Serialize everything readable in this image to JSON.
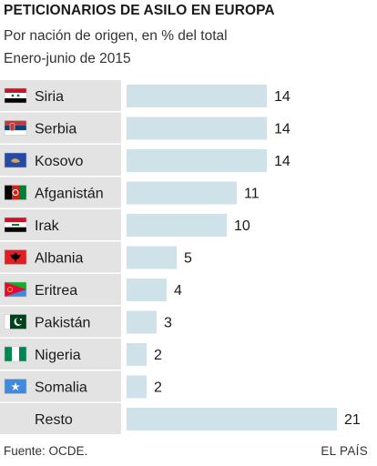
{
  "chart_data": {
    "type": "bar",
    "orientation": "horizontal",
    "title": "PETICIONARIOS DE ASILO EN EUROPA",
    "subtitle": "Por nación de origen, en % del total",
    "period": "Enero-junio de 2015",
    "categories": [
      "Siria",
      "Serbia",
      "Kosovo",
      "Afganistán",
      "Irak",
      "Albania",
      "Eritrea",
      "Pakistán",
      "Nigeria",
      "Somalia",
      "Resto"
    ],
    "values": [
      14,
      14,
      14,
      11,
      10,
      5,
      4,
      3,
      2,
      2,
      21
    ],
    "flags": [
      "syria-flag-icon",
      "serbia-flag-icon",
      "kosovo-flag-icon",
      "afghanistan-flag-icon",
      "iraq-flag-icon",
      "albania-flag-icon",
      "eritrea-flag-icon",
      "pakistan-flag-icon",
      "nigeria-flag-icon",
      "somalia-flag-icon",
      ""
    ],
    "xlim": [
      0,
      21
    ],
    "bar_color": "#cfe2ea",
    "label_background": "#e3e3e3"
  },
  "footer": {
    "source": "Fuente: OCDE.",
    "brand": "EL PAÍS"
  }
}
